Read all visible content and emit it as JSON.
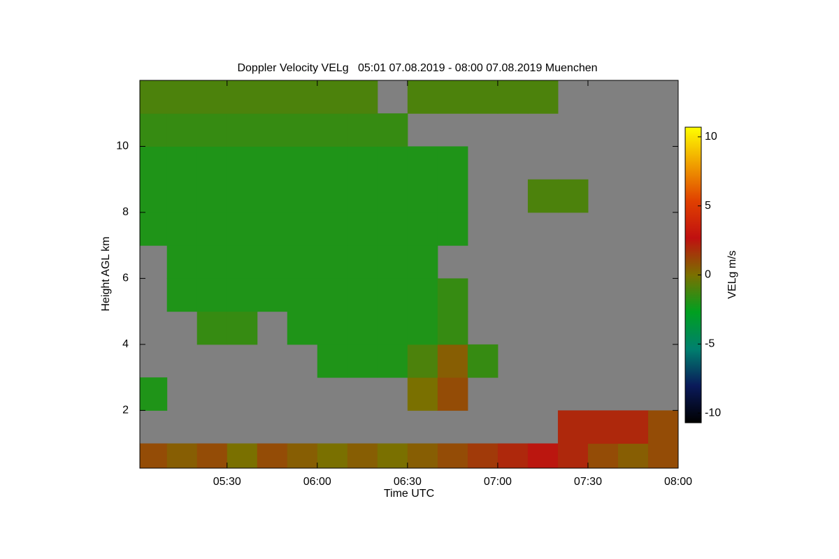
{
  "chart_data": {
    "type": "heatmap",
    "title": "Doppler Velocity VELg   05:01 07.08.2019 - 08:00 07.08.2019 Muenchen",
    "x_label": "Time UTC",
    "y_label": "Height AGL km",
    "colorbar_label": "VELg m/s",
    "xlim": [
      5.01667,
      8.0
    ],
    "xticks": [
      {
        "value": 5.5,
        "label": "05:30"
      },
      {
        "value": 6.0,
        "label": "06:00"
      },
      {
        "value": 6.5,
        "label": "06:30"
      },
      {
        "value": 7.0,
        "label": "07:00"
      },
      {
        "value": 7.5,
        "label": "07:30"
      },
      {
        "value": 8.0,
        "label": "08:00"
      }
    ],
    "ylim": [
      0.25,
      12
    ],
    "yticks": [
      2,
      4,
      6,
      8,
      10
    ],
    "clim": [
      -10.7,
      10.7
    ],
    "cticks": [
      10,
      5,
      0,
      -5,
      -10
    ],
    "colormap": [
      "#000000",
      "#0a1a5a",
      "#00806e",
      "#00a020",
      "#7a7000",
      "#c01010",
      "#e04000",
      "#f0a000",
      "#ffff00"
    ],
    "missing_color": "#808080",
    "xbins": [
      5.01667,
      5.16667,
      5.33333,
      5.5,
      5.66667,
      5.83333,
      6.0,
      6.16667,
      6.33333,
      6.5,
      6.66667,
      6.83333,
      7.0,
      7.16667,
      7.33333,
      7.5,
      7.66667,
      7.83333,
      8.0
    ],
    "ybins": [
      0.25,
      1,
      2,
      3,
      4,
      5,
      6,
      7,
      8,
      9,
      10,
      11,
      12
    ],
    "values": [
      [
        1,
        0.5,
        1,
        0,
        1,
        0.5,
        0,
        0.5,
        0,
        0.5,
        1,
        1.5,
        2,
        2.5,
        2,
        1,
        0.5,
        1
      ],
      [
        null,
        null,
        null,
        null,
        null,
        null,
        null,
        null,
        null,
        null,
        null,
        null,
        null,
        null,
        2,
        2,
        2,
        1
      ],
      [
        -2,
        null,
        null,
        null,
        null,
        null,
        null,
        null,
        null,
        0,
        1,
        null,
        null,
        null,
        null,
        null,
        null,
        null
      ],
      [
        null,
        null,
        null,
        null,
        null,
        null,
        -2,
        -2,
        -2,
        -1,
        0.5,
        -1.5,
        null,
        null,
        null,
        null,
        null,
        null
      ],
      [
        null,
        null,
        -1.5,
        -1.5,
        null,
        -2,
        -2,
        -2,
        -2,
        -2,
        -1.5,
        null,
        null,
        null,
        null,
        null,
        null,
        null
      ],
      [
        null,
        -2,
        -2,
        -2,
        -2,
        -2,
        -2,
        -2,
        -2,
        -2,
        -1.5,
        null,
        null,
        null,
        null,
        null,
        null,
        null
      ],
      [
        null,
        -2,
        -2,
        -2,
        -2,
        -2,
        -2,
        -2,
        -2,
        -2,
        null,
        null,
        null,
        null,
        null,
        null,
        null,
        null
      ],
      [
        -2,
        -2,
        -2,
        -2,
        -2,
        -2,
        -2,
        -2,
        -2,
        -2,
        -2,
        null,
        null,
        null,
        null,
        null,
        null,
        null
      ],
      [
        -2,
        -2,
        -2,
        -2,
        -2,
        -2,
        -2,
        -2,
        -2,
        -2,
        -2,
        null,
        null,
        -1,
        -1,
        null,
        null,
        null
      ],
      [
        -2,
        -2,
        -2,
        -2,
        -2,
        -2,
        -2,
        -2,
        -2,
        -2,
        -2,
        null,
        null,
        null,
        null,
        null,
        null,
        null
      ],
      [
        -1.5,
        -1.5,
        -1.5,
        -1.5,
        -1.5,
        -1.5,
        -1.5,
        -1.5,
        -1.5,
        null,
        null,
        null,
        null,
        null,
        null,
        null,
        null,
        null
      ],
      [
        -1,
        -1,
        -1,
        -1,
        -1,
        -1,
        -1,
        -1,
        null,
        -1,
        -1,
        -1,
        -1,
        -1,
        null,
        null,
        null,
        null
      ]
    ]
  }
}
